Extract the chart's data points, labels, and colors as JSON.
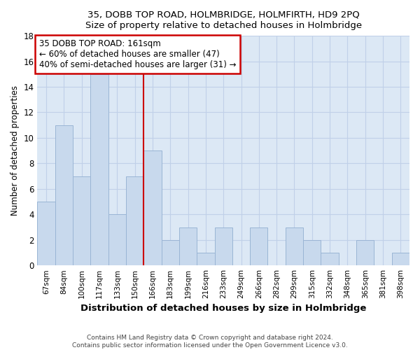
{
  "title": "35, DOBB TOP ROAD, HOLMBRIDGE, HOLMFIRTH, HD9 2PQ",
  "subtitle": "Size of property relative to detached houses in Holmbridge",
  "xlabel": "Distribution of detached houses by size in Holmbridge",
  "ylabel": "Number of detached properties",
  "categories": [
    "67sqm",
    "84sqm",
    "100sqm",
    "117sqm",
    "133sqm",
    "150sqm",
    "166sqm",
    "183sqm",
    "199sqm",
    "216sqm",
    "233sqm",
    "249sqm",
    "266sqm",
    "282sqm",
    "299sqm",
    "315sqm",
    "332sqm",
    "348sqm",
    "365sqm",
    "381sqm",
    "398sqm"
  ],
  "values": [
    5,
    11,
    7,
    15,
    4,
    7,
    9,
    2,
    3,
    1,
    3,
    0,
    3,
    0,
    3,
    2,
    1,
    0,
    2,
    0,
    1
  ],
  "bar_color": "#c8d9ed",
  "bar_edge_color": "#9ab5d5",
  "reference_line_label": "35 DOBB TOP ROAD: 161sqm",
  "annotation_line1": "← 60% of detached houses are smaller (47)",
  "annotation_line2": "40% of semi-detached houses are larger (31) →",
  "annotation_box_color": "#ffffff",
  "annotation_box_edge_color": "#cc0000",
  "vline_color": "#cc0000",
  "vline_index": 6,
  "ylim": [
    0,
    18
  ],
  "yticks": [
    0,
    2,
    4,
    6,
    8,
    10,
    12,
    14,
    16,
    18
  ],
  "background_color": "#dce8f5",
  "figure_background": "#ffffff",
  "grid_color": "#c0d0e8",
  "footer1": "Contains HM Land Registry data © Crown copyright and database right 2024.",
  "footer2": "Contains public sector information licensed under the Open Government Licence v3.0."
}
